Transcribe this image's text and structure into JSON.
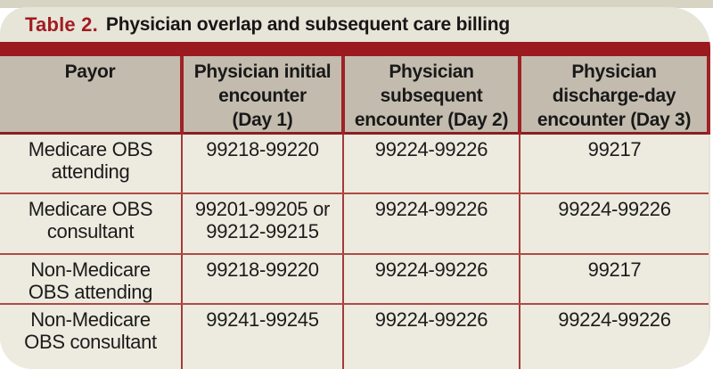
{
  "title": {
    "label": "Table 2.",
    "text": "Physician overlap and subsequent care billing"
  },
  "table": {
    "columns": [
      "Payor",
      "Physician initial\nencounter\n(Day 1)",
      "Physician\nsubsequent\nencounter (Day 2)",
      "Physician\ndischarge-day\nencounter (Day 3)"
    ],
    "rows": [
      [
        "Medicare OBS\nattending",
        "99218-99220",
        "99224-99226",
        "99217"
      ],
      [
        "Medicare OBS\nconsultant",
        "99201-99205 or\n99212-99215",
        "99224-99226",
        "99224-99226"
      ],
      [
        "Non-Medicare\nOBS attending",
        "99218-99220",
        "99224-99226",
        "99217"
      ],
      [
        "Non-Medicare\nOBS consultant",
        "99241-99245",
        "99224-99226",
        "99224-99226"
      ]
    ]
  },
  "colors": {
    "band_red": "#9b1a1f",
    "title_red": "#a11c22",
    "header_bg": "#c3bcae",
    "row_bg": "#edebdf",
    "panel_bg": "#e7e5d8",
    "page_band": "#d8d4c4"
  }
}
